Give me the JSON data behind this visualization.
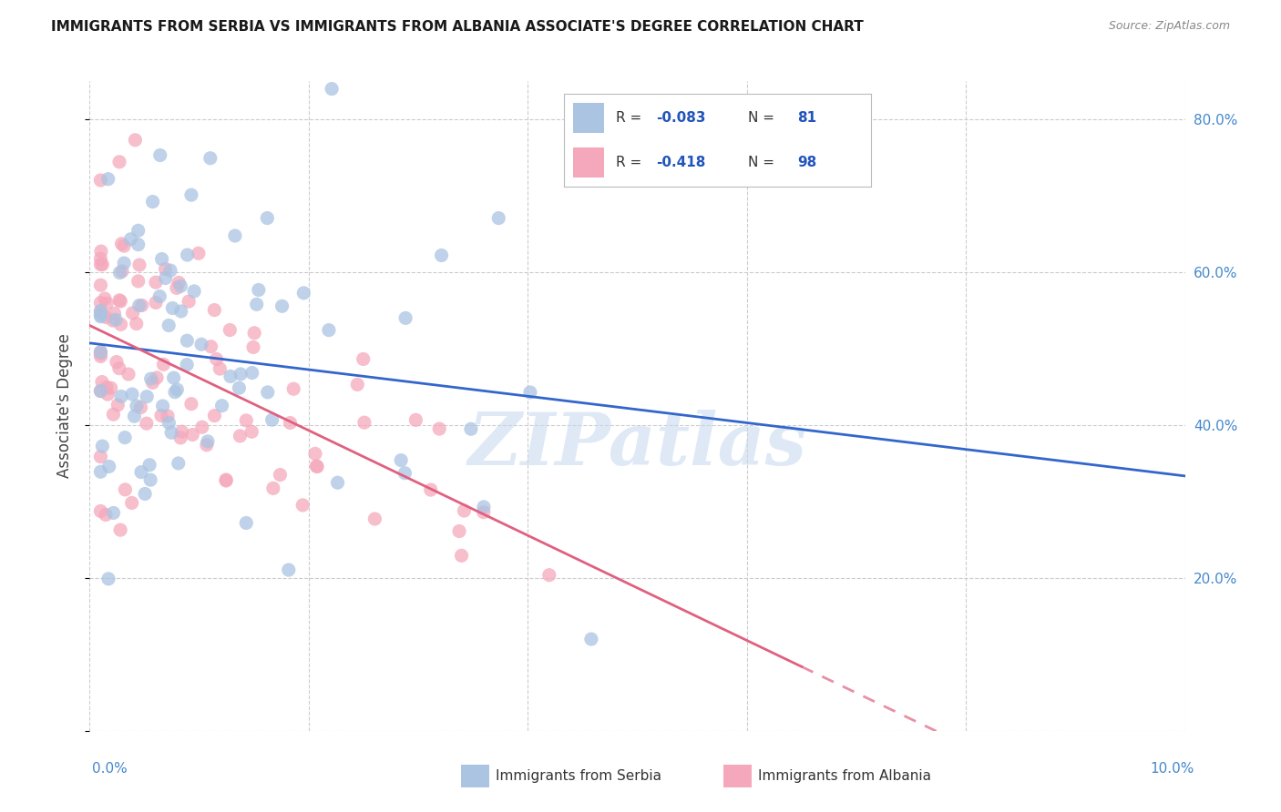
{
  "title": "IMMIGRANTS FROM SERBIA VS IMMIGRANTS FROM ALBANIA ASSOCIATE'S DEGREE CORRELATION CHART",
  "source": "Source: ZipAtlas.com",
  "ylabel": "Associate's Degree",
  "legend_serbia": "Immigrants from Serbia",
  "legend_albania": "Immigrants from Albania",
  "R_serbia": -0.083,
  "N_serbia": 81,
  "R_albania": -0.418,
  "N_albania": 98,
  "serbia_color": "#aac4e2",
  "albania_color": "#f5a8bc",
  "serbia_line_color": "#3366cc",
  "albania_line_color": "#e06080",
  "watermark": "ZIPatlas",
  "x_min": 0.0,
  "x_max": 0.1,
  "y_min": 0.0,
  "y_max": 0.85,
  "right_tick_color": "#4488cc",
  "bottom_tick_color": "#4488cc"
}
